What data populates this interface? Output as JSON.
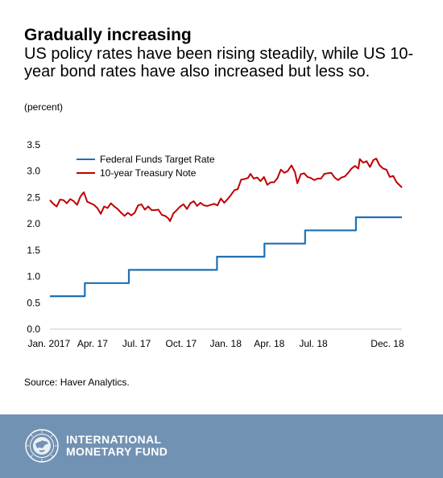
{
  "header": {
    "title": "Gradually increasing",
    "subtitle": "US policy rates have been rising steadily, while US 10-year bond rates have also increased but less so.",
    "unit_note": "(percent)"
  },
  "source": "Source: Haver Analytics.",
  "footer": {
    "org_line1": "INTERNATIONAL",
    "org_line2": "MONETARY FUND",
    "background": "#7292b3",
    "logo_icon": "imf-seal-icon"
  },
  "chart_data": {
    "type": "line",
    "x_range": [
      "2017-01-03",
      "2018-12-31"
    ],
    "ylim": [
      0,
      3.5
    ],
    "yticks": [
      "0.0",
      "0.5",
      "1.0",
      "1.5",
      "2.0",
      "2.5",
      "3.0",
      "3.5"
    ],
    "xticks": [
      {
        "label": "Jan. 2017",
        "date": "2017-01-01"
      },
      {
        "label": "Apr. 17",
        "date": "2017-04-01"
      },
      {
        "label": "Jul. 17",
        "date": "2017-07-01"
      },
      {
        "label": "Oct. 17",
        "date": "2017-10-01"
      },
      {
        "label": "Jan. 18",
        "date": "2018-01-01"
      },
      {
        "label": "Apr. 18",
        "date": "2018-04-01"
      },
      {
        "label": "Jul. 18",
        "date": "2018-07-01"
      },
      {
        "label": "Dec. 18",
        "date": "2018-12-01"
      }
    ],
    "legend_position": "top-left",
    "grid": false,
    "series": [
      {
        "name": "Federal Funds Target Rate",
        "color": "#1f6fb5",
        "step": true,
        "points": [
          {
            "x": "2017-01-03",
            "y": 0.625
          },
          {
            "x": "2017-03-16",
            "y": 0.875
          },
          {
            "x": "2017-06-15",
            "y": 1.125
          },
          {
            "x": "2017-12-14",
            "y": 1.375
          },
          {
            "x": "2018-03-22",
            "y": 1.625
          },
          {
            "x": "2018-06-14",
            "y": 1.875
          },
          {
            "x": "2018-09-27",
            "y": 2.125
          },
          {
            "x": "2018-12-31",
            "y": 2.125
          }
        ]
      },
      {
        "name": "10-year Treasury Note",
        "color": "#c00000",
        "step": false,
        "points": [
          {
            "x": "2017-01-03",
            "y": 2.45
          },
          {
            "x": "2017-01-10",
            "y": 2.38
          },
          {
            "x": "2017-01-17",
            "y": 2.33
          },
          {
            "x": "2017-01-24",
            "y": 2.46
          },
          {
            "x": "2017-01-31",
            "y": 2.45
          },
          {
            "x": "2017-02-07",
            "y": 2.39
          },
          {
            "x": "2017-02-14",
            "y": 2.47
          },
          {
            "x": "2017-02-21",
            "y": 2.43
          },
          {
            "x": "2017-02-28",
            "y": 2.36
          },
          {
            "x": "2017-03-07",
            "y": 2.52
          },
          {
            "x": "2017-03-14",
            "y": 2.6
          },
          {
            "x": "2017-03-21",
            "y": 2.42
          },
          {
            "x": "2017-03-28",
            "y": 2.39
          },
          {
            "x": "2017-04-04",
            "y": 2.36
          },
          {
            "x": "2017-04-11",
            "y": 2.3
          },
          {
            "x": "2017-04-18",
            "y": 2.19
          },
          {
            "x": "2017-04-25",
            "y": 2.33
          },
          {
            "x": "2017-05-02",
            "y": 2.3
          },
          {
            "x": "2017-05-09",
            "y": 2.39
          },
          {
            "x": "2017-05-16",
            "y": 2.33
          },
          {
            "x": "2017-05-23",
            "y": 2.28
          },
          {
            "x": "2017-05-30",
            "y": 2.21
          },
          {
            "x": "2017-06-06",
            "y": 2.15
          },
          {
            "x": "2017-06-13",
            "y": 2.21
          },
          {
            "x": "2017-06-20",
            "y": 2.16
          },
          {
            "x": "2017-06-27",
            "y": 2.21
          },
          {
            "x": "2017-07-04",
            "y": 2.35
          },
          {
            "x": "2017-07-11",
            "y": 2.37
          },
          {
            "x": "2017-07-18",
            "y": 2.27
          },
          {
            "x": "2017-07-25",
            "y": 2.33
          },
          {
            "x": "2017-08-01",
            "y": 2.26
          },
          {
            "x": "2017-08-08",
            "y": 2.26
          },
          {
            "x": "2017-08-15",
            "y": 2.27
          },
          {
            "x": "2017-08-22",
            "y": 2.17
          },
          {
            "x": "2017-08-29",
            "y": 2.15
          },
          {
            "x": "2017-09-05",
            "y": 2.1
          },
          {
            "x": "2017-09-08",
            "y": 2.05
          },
          {
            "x": "2017-09-15",
            "y": 2.2
          },
          {
            "x": "2017-09-22",
            "y": 2.26
          },
          {
            "x": "2017-09-29",
            "y": 2.33
          },
          {
            "x": "2017-10-06",
            "y": 2.37
          },
          {
            "x": "2017-10-13",
            "y": 2.28
          },
          {
            "x": "2017-10-20",
            "y": 2.39
          },
          {
            "x": "2017-10-27",
            "y": 2.43
          },
          {
            "x": "2017-11-03",
            "y": 2.34
          },
          {
            "x": "2017-11-10",
            "y": 2.4
          },
          {
            "x": "2017-11-17",
            "y": 2.35
          },
          {
            "x": "2017-11-24",
            "y": 2.34
          },
          {
            "x": "2017-12-01",
            "y": 2.36
          },
          {
            "x": "2017-12-08",
            "y": 2.38
          },
          {
            "x": "2017-12-15",
            "y": 2.35
          },
          {
            "x": "2017-12-22",
            "y": 2.48
          },
          {
            "x": "2017-12-29",
            "y": 2.4
          },
          {
            "x": "2018-01-05",
            "y": 2.47
          },
          {
            "x": "2018-01-12",
            "y": 2.55
          },
          {
            "x": "2018-01-19",
            "y": 2.64
          },
          {
            "x": "2018-01-26",
            "y": 2.66
          },
          {
            "x": "2018-02-02",
            "y": 2.84
          },
          {
            "x": "2018-02-09",
            "y": 2.85
          },
          {
            "x": "2018-02-16",
            "y": 2.87
          },
          {
            "x": "2018-02-21",
            "y": 2.95
          },
          {
            "x": "2018-02-28",
            "y": 2.86
          },
          {
            "x": "2018-03-07",
            "y": 2.88
          },
          {
            "x": "2018-03-14",
            "y": 2.81
          },
          {
            "x": "2018-03-21",
            "y": 2.89
          },
          {
            "x": "2018-03-28",
            "y": 2.74
          },
          {
            "x": "2018-04-04",
            "y": 2.79
          },
          {
            "x": "2018-04-11",
            "y": 2.79
          },
          {
            "x": "2018-04-18",
            "y": 2.87
          },
          {
            "x": "2018-04-25",
            "y": 3.03
          },
          {
            "x": "2018-05-02",
            "y": 2.97
          },
          {
            "x": "2018-05-09",
            "y": 3.0
          },
          {
            "x": "2018-05-17",
            "y": 3.11
          },
          {
            "x": "2018-05-24",
            "y": 2.98
          },
          {
            "x": "2018-05-29",
            "y": 2.77
          },
          {
            "x": "2018-06-05",
            "y": 2.94
          },
          {
            "x": "2018-06-12",
            "y": 2.96
          },
          {
            "x": "2018-06-19",
            "y": 2.89
          },
          {
            "x": "2018-06-26",
            "y": 2.87
          },
          {
            "x": "2018-07-03",
            "y": 2.83
          },
          {
            "x": "2018-07-10",
            "y": 2.86
          },
          {
            "x": "2018-07-17",
            "y": 2.86
          },
          {
            "x": "2018-07-24",
            "y": 2.95
          },
          {
            "x": "2018-07-31",
            "y": 2.96
          },
          {
            "x": "2018-08-07",
            "y": 2.97
          },
          {
            "x": "2018-08-14",
            "y": 2.88
          },
          {
            "x": "2018-08-21",
            "y": 2.83
          },
          {
            "x": "2018-08-28",
            "y": 2.88
          },
          {
            "x": "2018-09-04",
            "y": 2.9
          },
          {
            "x": "2018-09-11",
            "y": 2.97
          },
          {
            "x": "2018-09-18",
            "y": 3.05
          },
          {
            "x": "2018-09-25",
            "y": 3.1
          },
          {
            "x": "2018-10-02",
            "y": 3.05
          },
          {
            "x": "2018-10-05",
            "y": 3.23
          },
          {
            "x": "2018-10-12",
            "y": 3.16
          },
          {
            "x": "2018-10-19",
            "y": 3.19
          },
          {
            "x": "2018-10-26",
            "y": 3.08
          },
          {
            "x": "2018-11-02",
            "y": 3.21
          },
          {
            "x": "2018-11-08",
            "y": 3.24
          },
          {
            "x": "2018-11-15",
            "y": 3.11
          },
          {
            "x": "2018-11-22",
            "y": 3.05
          },
          {
            "x": "2018-11-29",
            "y": 3.03
          },
          {
            "x": "2018-12-06",
            "y": 2.89
          },
          {
            "x": "2018-12-13",
            "y": 2.91
          },
          {
            "x": "2018-12-20",
            "y": 2.79
          },
          {
            "x": "2018-12-31",
            "y": 2.69
          }
        ]
      }
    ]
  }
}
